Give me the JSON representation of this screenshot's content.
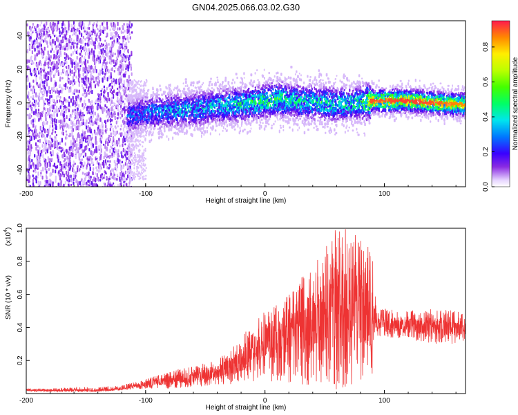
{
  "title": "GN04.2025.066.03.02.G30",
  "colors": {
    "snr_line": "#ee3333",
    "background": "#ffffff"
  },
  "chart_data": [
    {
      "type": "heatmap",
      "title": "GN04.2025.066.03.02.G30",
      "xlabel": "Height of straight line (km)",
      "ylabel": "Frequency (Hz)",
      "xlim": [
        -200,
        168
      ],
      "ylim": [
        -50,
        49
      ],
      "xticks": [
        -200,
        -100,
        0,
        100
      ],
      "xtick_labels": [
        "-200",
        "-100",
        "0",
        "100"
      ],
      "yticks": [
        -40,
        -20,
        0,
        20,
        40
      ],
      "ytick_labels": [
        "-40",
        "-20",
        "0",
        "20",
        "40"
      ],
      "colorbar": {
        "label": "Normalized spectral amplitude",
        "range": [
          0.0,
          0.95
        ],
        "ticks": [
          0.0,
          0.2,
          0.4,
          0.6,
          0.8
        ],
        "tick_labels": [
          "0.0",
          "0.2",
          "0.4",
          "0.6",
          "0.8"
        ],
        "colormap": "rainbow"
      },
      "ridge": {
        "x": [
          -115,
          -100,
          -80,
          -60,
          -40,
          -20,
          0,
          10,
          20,
          40,
          60,
          80,
          88,
          100,
          120,
          140,
          160,
          168
        ],
        "center_hz": [
          -7,
          -5,
          -4,
          -3,
          -1,
          0,
          2,
          3,
          2,
          1,
          0,
          1,
          2,
          2,
          2,
          1,
          0,
          0
        ],
        "peak_amplitude": [
          0.3,
          0.35,
          0.4,
          0.42,
          0.45,
          0.5,
          0.55,
          0.6,
          0.5,
          0.5,
          0.5,
          0.5,
          0.9,
          0.9,
          0.92,
          0.9,
          0.85,
          0.85
        ]
      },
      "noise_region_x": [
        -200,
        -115
      ]
    },
    {
      "type": "line",
      "xlabel": "Height of straight line (km)",
      "ylabel": "SNR (10 * v/v)",
      "y_multiplier_label": "(x10",
      "y_multiplier_exp": "4",
      "xlim": [
        -200,
        168
      ],
      "ylim": [
        0,
        1.0
      ],
      "xticks": [
        -200,
        -100,
        0,
        100
      ],
      "xtick_labels": [
        "-200",
        "-100",
        "0",
        "100"
      ],
      "yticks": [
        0.2,
        0.4,
        0.6,
        0.8,
        1.0
      ],
      "ytick_labels": [
        "0.2",
        "0.4",
        "0.6",
        "0.8",
        "1.0"
      ],
      "series": [
        {
          "x": [
            -200,
            -180,
            -160,
            -140,
            -120,
            -100,
            -80,
            -60,
            -40,
            -20,
            0,
            20,
            40,
            60,
            70,
            80,
            90,
            92,
            95,
            100,
            120,
            140,
            160,
            168
          ],
          "upper": [
            0.03,
            0.03,
            0.04,
            0.04,
            0.05,
            0.09,
            0.13,
            0.17,
            0.2,
            0.35,
            0.5,
            0.6,
            0.8,
            1.0,
            1.0,
            0.98,
            0.85,
            0.62,
            0.5,
            0.52,
            0.5,
            0.52,
            0.5,
            0.48
          ],
          "lower": [
            0.01,
            0.01,
            0.01,
            0.01,
            0.02,
            0.03,
            0.03,
            0.04,
            0.05,
            0.06,
            0.08,
            0.06,
            0.04,
            0.02,
            0.04,
            0.08,
            0.12,
            0.3,
            0.35,
            0.34,
            0.33,
            0.3,
            0.3,
            0.32
          ],
          "mean": [
            0.02,
            0.02,
            0.02,
            0.02,
            0.03,
            0.06,
            0.08,
            0.1,
            0.12,
            0.2,
            0.3,
            0.38,
            0.42,
            0.5,
            0.52,
            0.55,
            0.45,
            0.45,
            0.43,
            0.42,
            0.41,
            0.41,
            0.4,
            0.39
          ]
        }
      ]
    }
  ]
}
